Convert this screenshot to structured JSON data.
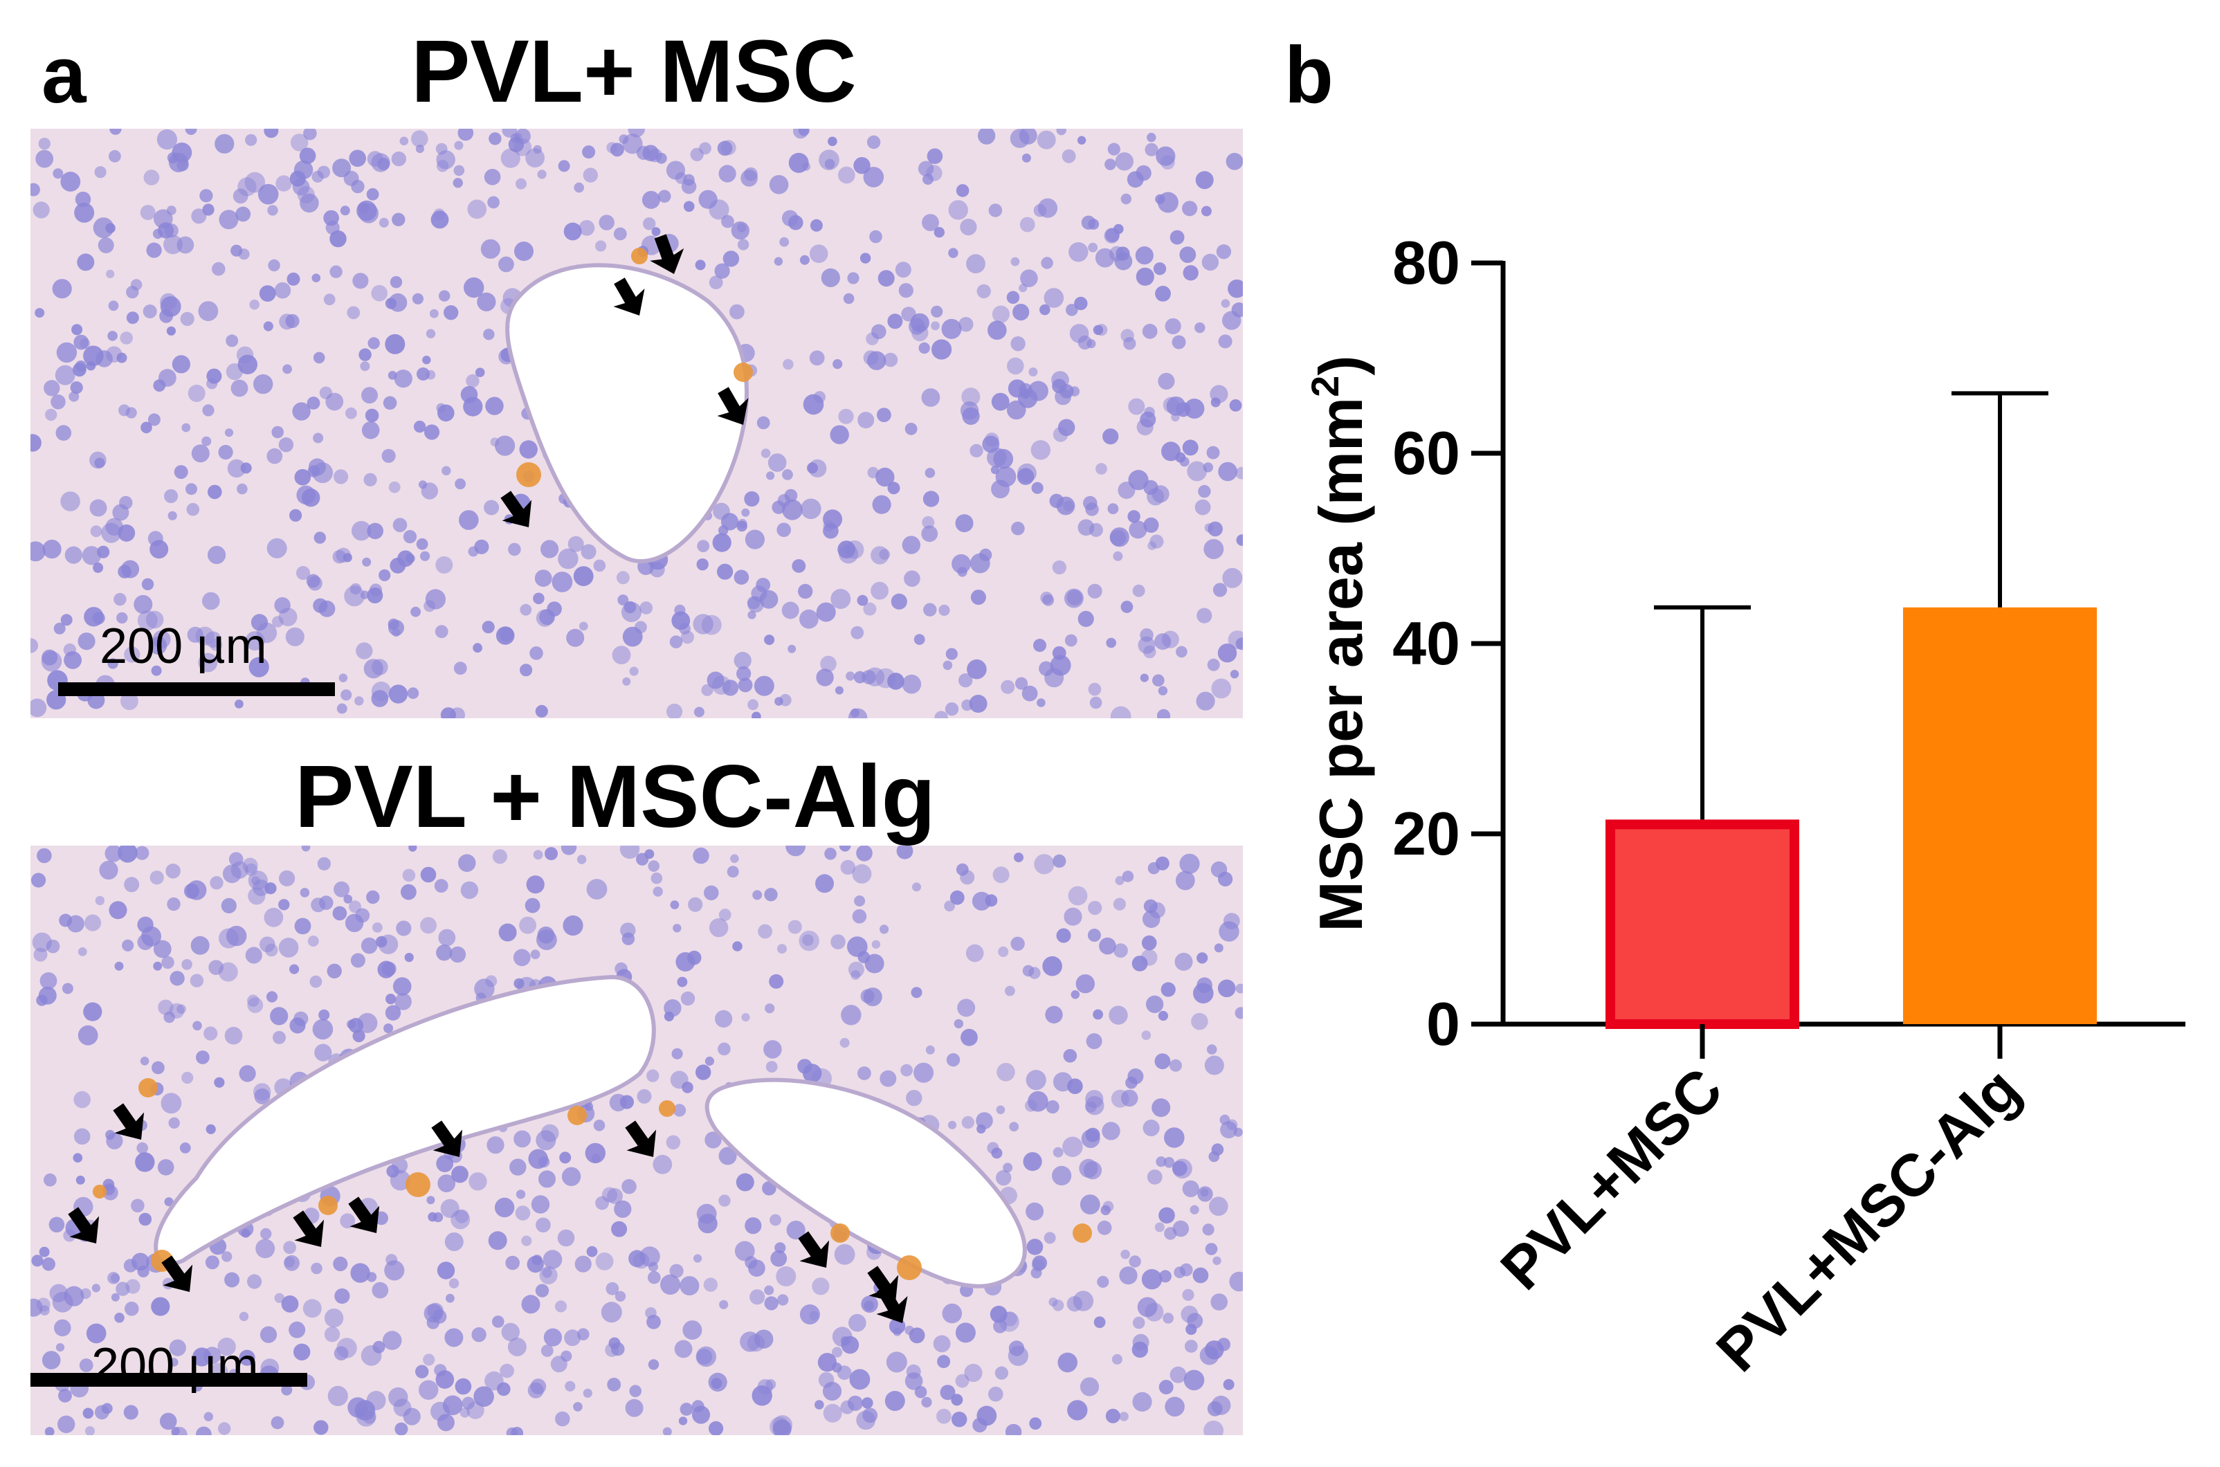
{
  "panel_a": {
    "letter": "a",
    "micrographs": [
      {
        "title": "PVL+ MSC",
        "scale_bar": "200 µm",
        "arrow_count": 4
      },
      {
        "title": "PVL + MSC-Alg",
        "scale_bar": "200 µm",
        "arrow_count": 11
      }
    ]
  },
  "panel_b": {
    "letter": "b"
  },
  "colors": {
    "tissue_bg": "#ecdde8",
    "nucleus": "#8a84d6",
    "stain": "#e9963a",
    "bar1_fill": "#f74241",
    "bar1_edge": "#e8001b",
    "bar2_fill": "#ff8205",
    "axis": "#000000"
  },
  "chart_data": {
    "type": "bar",
    "categories": [
      "PVL+MSC",
      "PVL+MSC-Alg"
    ],
    "values": [
      21.5,
      43.8
    ],
    "error_upper": [
      43.8,
      66.3
    ],
    "ylabel_main": "MSC per area (mm",
    "ylabel_sup": "2",
    "ylabel_end": ")",
    "ylim": [
      0,
      80
    ],
    "yticks": [
      0,
      20,
      40,
      60,
      80
    ],
    "grid": false,
    "legend": "none"
  }
}
